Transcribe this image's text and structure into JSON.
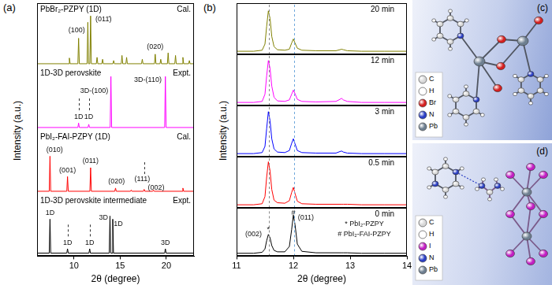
{
  "chart_data": [
    {
      "type": "line",
      "panel_label": "(a)",
      "ylabel": "Intensity (a.u.)",
      "title": "PbBr₂-PZPY (1D)",
      "subtitle": "Cal.",
      "color": "#808000",
      "x": [
        6,
        9.42,
        9.5,
        9.58,
        10.42,
        10.5,
        10.58,
        11.42,
        11.5,
        11.58,
        11.72,
        11.8,
        11.88,
        12.42,
        12.5,
        12.58,
        13.02,
        13.1,
        13.18,
        14.22,
        14.3,
        14.38,
        15.12,
        15.2,
        15.28,
        15.62,
        15.7,
        15.78,
        17.32,
        17.4,
        17.48,
        18.72,
        18.8,
        18.88,
        19.32,
        19.4,
        19.48,
        20.12,
        20.2,
        20.28,
        20.92,
        21.0,
        21.08,
        21.72,
        21.8,
        21.88,
        22.42,
        22.5,
        22.58,
        23
      ],
      "values": [
        5,
        5,
        14,
        5,
        5,
        45,
        5,
        5,
        70,
        5,
        5,
        80,
        5,
        5,
        15,
        5,
        5,
        12,
        5,
        5,
        10,
        5,
        5,
        18,
        5,
        5,
        15,
        5,
        5,
        12,
        5,
        5,
        20,
        5,
        5,
        12,
        5,
        5,
        22,
        5,
        5,
        18,
        5,
        5,
        15,
        5,
        5,
        10,
        5,
        5
      ],
      "xlim": [
        6,
        23
      ],
      "ylim": [
        0,
        100
      ],
      "grid": false,
      "tick_labels": false,
      "annotations": [
        {
          "text": "(100)",
          "x": 10.3,
          "y": 58
        },
        {
          "text": "(011̄)",
          "x": 13.2,
          "y": 75
        },
        {
          "text": "(020)",
          "x": 18.8,
          "y": 32
        }
      ]
    },
    {
      "type": "line",
      "title": "1D-3D perovskite",
      "subtitle": "Expt.",
      "color": "#ff00ff",
      "x": [
        6,
        10.42,
        10.5,
        10.58,
        11.52,
        11.6,
        11.68,
        13.92,
        14.0,
        14.08,
        19.82,
        19.9,
        19.98,
        23
      ],
      "values": [
        5,
        5,
        12,
        5,
        5,
        10,
        5,
        5,
        85,
        5,
        5,
        85,
        5,
        5
      ],
      "xlim": [
        6,
        23
      ],
      "ylim": [
        0,
        100
      ],
      "grid": false,
      "tick_labels": false,
      "reference_lines": [
        10.5,
        11.6
      ],
      "annotations": [
        {
          "text": "1D",
          "x": 10.5,
          "y": 22
        },
        {
          "text": "1D",
          "x": 11.6,
          "y": 22
        },
        {
          "text": "3D-(100)",
          "x": 12.2,
          "y": 62
        },
        {
          "text": "3D-(110)",
          "x": 18.0,
          "y": 80
        }
      ]
    },
    {
      "type": "line",
      "title": "PbI₂-FAI-PZPY (1D)",
      "subtitle": "Cal.",
      "color": "#ff0000",
      "x": [
        6,
        7.32,
        7.4,
        7.48,
        9.22,
        9.3,
        9.38,
        11.72,
        11.8,
        11.88,
        14.42,
        14.5,
        14.58,
        16.12,
        16.2,
        16.28,
        17.52,
        17.6,
        17.68,
        18.52,
        18.6,
        18.68,
        21.72,
        21.8,
        21.88,
        23
      ],
      "values": [
        5,
        5,
        60,
        5,
        5,
        28,
        5,
        5,
        42,
        5,
        5,
        10,
        5,
        5,
        7,
        5,
        5,
        8,
        5,
        5,
        7,
        5,
        5,
        10,
        5,
        5
      ],
      "xlim": [
        6,
        23
      ],
      "ylim": [
        0,
        100
      ],
      "grid": false,
      "tick_labels": false,
      "reference_lines": [
        17.6
      ],
      "annotations": [
        {
          "text": "(010)",
          "x": 7.9,
          "y": 70
        },
        {
          "text": "(001)",
          "x": 9.3,
          "y": 38
        },
        {
          "text": "(011)",
          "x": 11.8,
          "y": 52
        },
        {
          "text": "(020)",
          "x": 14.6,
          "y": 20
        },
        {
          "text": "(111)",
          "x": 17.4,
          "y": 24
        },
        {
          "text": "(002)",
          "x": 18.9,
          "y": 10
        }
      ]
    },
    {
      "type": "line",
      "title": "1D-3D perovskite intermediate",
      "subtitle": "Expt.",
      "color": "#000000",
      "xlabel": "2θ (degree)",
      "x": [
        6,
        7.32,
        7.4,
        7.48,
        9.22,
        9.3,
        9.38,
        11.62,
        11.7,
        11.78,
        13.82,
        13.9,
        13.98,
        14.12,
        14.2,
        14.28,
        19.82,
        19.9,
        19.98,
        23
      ],
      "values": [
        5,
        5,
        60,
        5,
        5,
        12,
        5,
        5,
        12,
        5,
        5,
        65,
        5,
        5,
        60,
        5,
        5,
        12,
        5,
        5
      ],
      "xlim": [
        6,
        23
      ],
      "xticks": [
        10,
        15,
        20
      ],
      "ylim": [
        0,
        100
      ],
      "grid": false,
      "tick_labels": "x",
      "reference_lines": [
        9.3,
        11.7
      ],
      "annotations": [
        {
          "text": "1D",
          "x": 7.4,
          "y": 70
        },
        {
          "text": "1D",
          "x": 9.3,
          "y": 22
        },
        {
          "text": "1D",
          "x": 11.7,
          "y": 22
        },
        {
          "text": "3D",
          "x": 13.2,
          "y": 62
        },
        {
          "text": "1D",
          "x": 14.8,
          "y": 52
        },
        {
          "text": "3D",
          "x": 19.9,
          "y": 22
        }
      ]
    },
    {
      "type": "line",
      "panel_label": "(b)",
      "ylabel": "Intensity (a.u.)",
      "title": "20 min",
      "color": "#808000",
      "x": [
        11.0,
        11.3,
        11.45,
        11.5,
        11.53,
        11.56,
        11.59,
        11.62,
        11.66,
        11.72,
        11.85,
        11.93,
        11.97,
        12.0,
        12.03,
        12.07,
        12.15,
        12.4,
        12.75,
        12.82,
        12.85,
        12.88,
        12.95,
        13.2,
        13.6,
        14.0
      ],
      "values": [
        6,
        6,
        8,
        20,
        55,
        85,
        70,
        35,
        15,
        9,
        8,
        10,
        22,
        30,
        22,
        12,
        8,
        7,
        7,
        9,
        10,
        9,
        7,
        6,
        6,
        6
      ],
      "xlim": [
        11,
        14
      ],
      "ylim": [
        0,
        100
      ],
      "grid": false,
      "tick_labels": false,
      "reference_lines": [
        11.57,
        12.02
      ]
    },
    {
      "type": "line",
      "title": "12 min",
      "color": "#ff00ff",
      "x": [
        11.0,
        11.3,
        11.45,
        11.5,
        11.53,
        11.56,
        11.59,
        11.62,
        11.66,
        11.72,
        11.85,
        11.93,
        11.97,
        12.0,
        12.03,
        12.07,
        12.15,
        12.4,
        12.75,
        12.82,
        12.85,
        12.88,
        12.95,
        13.2,
        13.6,
        14.0
      ],
      "values": [
        6,
        6,
        8,
        22,
        58,
        88,
        72,
        38,
        16,
        9,
        8,
        11,
        22,
        30,
        23,
        12,
        8,
        7,
        8,
        12,
        14,
        11,
        8,
        6,
        6,
        6
      ],
      "xlim": [
        11,
        14
      ],
      "ylim": [
        0,
        100
      ],
      "grid": false,
      "tick_labels": false,
      "reference_lines": [
        11.57,
        12.02
      ]
    },
    {
      "type": "line",
      "title": "3 min",
      "color": "#0000ff",
      "x": [
        11.0,
        11.3,
        11.45,
        11.5,
        11.53,
        11.56,
        11.59,
        11.62,
        11.66,
        11.72,
        11.85,
        11.93,
        11.97,
        12.0,
        12.03,
        12.07,
        12.15,
        12.4,
        12.75,
        12.82,
        12.85,
        12.88,
        12.95,
        13.2,
        13.6,
        14.0
      ],
      "values": [
        6,
        6,
        8,
        20,
        55,
        88,
        70,
        35,
        15,
        9,
        8,
        12,
        26,
        35,
        25,
        12,
        8,
        7,
        7,
        10,
        11,
        9,
        7,
        6,
        6,
        6
      ],
      "xlim": [
        11,
        14
      ],
      "ylim": [
        0,
        100
      ],
      "grid": false,
      "tick_labels": false,
      "reference_lines": [
        11.57,
        12.02
      ]
    },
    {
      "type": "line",
      "title": "0.5 min",
      "color": "#ff0000",
      "x": [
        11.0,
        11.3,
        11.45,
        11.5,
        11.53,
        11.56,
        11.59,
        11.62,
        11.66,
        11.72,
        11.85,
        11.93,
        11.97,
        12.0,
        12.03,
        12.07,
        12.15,
        12.4,
        12.75,
        12.82,
        12.85,
        12.88,
        12.95,
        13.2,
        13.6,
        14.0
      ],
      "values": [
        6,
        6,
        8,
        22,
        60,
        90,
        72,
        36,
        15,
        10,
        9,
        14,
        30,
        40,
        28,
        13,
        8,
        7,
        7,
        7,
        7,
        7,
        7,
        6,
        6,
        6
      ],
      "xlim": [
        11,
        14
      ],
      "ylim": [
        0,
        100
      ],
      "grid": false,
      "tick_labels": false,
      "reference_lines": [
        11.57,
        12.02
      ]
    },
    {
      "type": "line",
      "title": "0 min",
      "color": "#000000",
      "xlabel": "2θ (degree)",
      "x": [
        11.0,
        11.3,
        11.45,
        11.5,
        11.53,
        11.56,
        11.59,
        11.62,
        11.66,
        11.72,
        11.85,
        11.93,
        11.97,
        12.0,
        12.03,
        12.07,
        12.15,
        12.4,
        12.75,
        12.82,
        12.85,
        12.88,
        12.95,
        13.2,
        13.6,
        14.0
      ],
      "values": [
        6,
        6,
        8,
        15,
        32,
        45,
        38,
        22,
        12,
        9,
        9,
        20,
        55,
        85,
        65,
        25,
        10,
        7,
        7,
        7,
        7,
        7,
        7,
        6,
        6,
        6
      ],
      "xlim": [
        11,
        14
      ],
      "xticks": [
        11,
        12,
        13,
        14
      ],
      "ylim": [
        0,
        100
      ],
      "grid": false,
      "tick_labels": "x",
      "reference_lines": [
        11.57,
        12.02
      ],
      "annotations": [
        {
          "text": "(002)",
          "x": 11.3,
          "y": 45
        },
        {
          "text": "*",
          "x": 11.56,
          "y": 55
        },
        {
          "text": "#",
          "x": 12.0,
          "y": 90
        },
        {
          "text": "(011)",
          "x": 12.22,
          "y": 80
        },
        {
          "text": "* PbI₂-PZPY",
          "x": 13.25,
          "y": 66
        },
        {
          "text": "# PbI₂-FAI-PZPY",
          "x": 13.25,
          "y": 46
        }
      ]
    }
  ],
  "structures": [
    {
      "label": "(c)",
      "legend": [
        {
          "name": "C",
          "color": "#d8d8d8"
        },
        {
          "name": "H",
          "color": "#ffffff"
        },
        {
          "name": "Br",
          "color": "#d42020"
        },
        {
          "name": "N",
          "color": "#2b3fc4"
        },
        {
          "name": "Pb",
          "color": "#6e7f90"
        }
      ]
    },
    {
      "label": "(d)",
      "legend": [
        {
          "name": "C",
          "color": "#d8d8d8"
        },
        {
          "name": "H",
          "color": "#ffffff"
        },
        {
          "name": "I",
          "color": "#c21fc2"
        },
        {
          "name": "N",
          "color": "#2b3fc4"
        },
        {
          "name": "Pb",
          "color": "#6e7f90"
        }
      ]
    }
  ]
}
